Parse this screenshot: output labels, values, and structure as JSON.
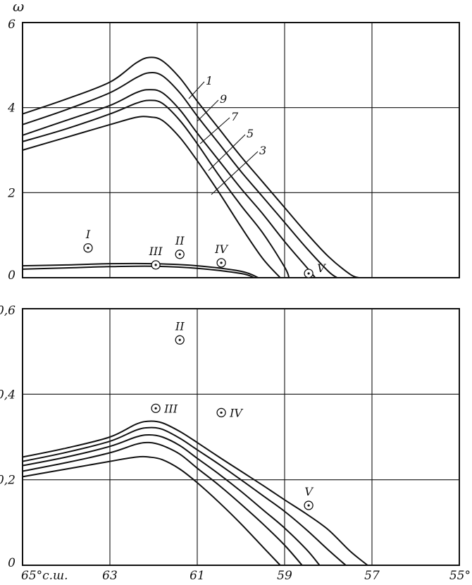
{
  "chart_data": [
    {
      "type": "line",
      "panel": "top",
      "ylabel": "ω",
      "xlim": [
        65,
        55
      ],
      "ylim": [
        0,
        6
      ],
      "grid": true,
      "x_ticks": [
        65,
        63,
        61,
        59,
        57,
        55
      ],
      "y_ticks": [
        0,
        2,
        4,
        6
      ],
      "y_tick_labels": [
        "0",
        "2",
        "4",
        "6"
      ],
      "series": [
        {
          "name": "1",
          "x": [
            65,
            64,
            63,
            62.4,
            62.1,
            61.8,
            61.4,
            61,
            60.5,
            60,
            59.5,
            59,
            58.5,
            58,
            57.5,
            57.3
          ],
          "y": [
            3.85,
            4.2,
            4.6,
            5.05,
            5.18,
            5.1,
            4.7,
            4.15,
            3.5,
            2.85,
            2.25,
            1.65,
            1.05,
            0.5,
            0.08,
            0
          ]
        },
        {
          "name": "9",
          "x": [
            65,
            64,
            63,
            62.4,
            62.1,
            61.8,
            61.4,
            61,
            60.5,
            60,
            59.5,
            59,
            58.5,
            58,
            57.8
          ],
          "y": [
            3.6,
            3.95,
            4.35,
            4.7,
            4.82,
            4.75,
            4.35,
            3.8,
            3.15,
            2.5,
            1.9,
            1.3,
            0.7,
            0.15,
            0
          ]
        },
        {
          "name": "7",
          "x": [
            65,
            64,
            63,
            62.4,
            62.1,
            61.8,
            61.4,
            61,
            60.5,
            60,
            59.5,
            59,
            58.5,
            58.3
          ],
          "y": [
            3.35,
            3.7,
            4.05,
            4.35,
            4.42,
            4.35,
            3.95,
            3.4,
            2.75,
            2.1,
            1.5,
            0.85,
            0.25,
            0
          ]
        },
        {
          "name": "5",
          "x": [
            65,
            64,
            63,
            62.4,
            62.1,
            61.8,
            61.4,
            61,
            60.5,
            60,
            59.5,
            59,
            58.9
          ],
          "y": [
            3.2,
            3.5,
            3.85,
            4.1,
            4.17,
            4.1,
            3.7,
            3.15,
            2.4,
            1.7,
            1.05,
            0.25,
            0
          ]
        },
        {
          "name": "3",
          "x": [
            65,
            64,
            63,
            62.4,
            62.1,
            61.8,
            61.4,
            61,
            60.5,
            60,
            59.5,
            59.1
          ],
          "y": [
            3.0,
            3.3,
            3.6,
            3.77,
            3.78,
            3.7,
            3.3,
            2.75,
            2.0,
            1.2,
            0.45,
            0
          ]
        },
        {
          "name": "",
          "x": [
            65,
            64,
            63,
            62,
            61,
            60,
            59.6
          ],
          "y": [
            0.28,
            0.3,
            0.33,
            0.33,
            0.28,
            0.15,
            0
          ]
        },
        {
          "name": "",
          "x": [
            65,
            64,
            63,
            62,
            61,
            60,
            59.7
          ],
          "y": [
            0.2,
            0.23,
            0.26,
            0.27,
            0.22,
            0.1,
            0
          ]
        }
      ],
      "stations": [
        {
          "label": "I",
          "x": 63.5,
          "y": 0.7
        },
        {
          "label": "III",
          "x": 61.95,
          "y": 0.3
        },
        {
          "label": "II",
          "x": 61.4,
          "y": 0.55
        },
        {
          "label": "IV",
          "x": 60.45,
          "y": 0.35
        },
        {
          "label": "V",
          "x": 58.45,
          "y": 0.1
        }
      ]
    },
    {
      "type": "line",
      "panel": "bottom",
      "xlim": [
        65,
        55
      ],
      "ylim": [
        0,
        0.6
      ],
      "grid": true,
      "x_ticks": [
        65,
        63,
        61,
        59,
        57,
        55
      ],
      "x_tick_labels": [
        "65°с.ш.",
        "63",
        "61",
        "59",
        "57",
        "55°"
      ],
      "y_ticks": [
        0,
        0.2,
        0.4,
        0.6
      ],
      "y_tick_labels": [
        "0",
        "0,2",
        "0,4",
        "0,6"
      ],
      "series": [
        {
          "name": "",
          "x": [
            65,
            64,
            63,
            62.4,
            62.1,
            61.8,
            61.4,
            61,
            60.5,
            60,
            59.5,
            59,
            58.5,
            58,
            57.5,
            57.1
          ],
          "y": [
            0.253,
            0.274,
            0.3,
            0.33,
            0.337,
            0.333,
            0.313,
            0.287,
            0.253,
            0.22,
            0.187,
            0.153,
            0.12,
            0.083,
            0.033,
            0
          ]
        },
        {
          "name": "",
          "x": [
            65,
            64,
            63,
            62.4,
            62.1,
            61.8,
            61.4,
            61,
            60.5,
            60,
            59.5,
            59,
            58.5,
            58,
            57.6
          ],
          "y": [
            0.243,
            0.264,
            0.29,
            0.316,
            0.322,
            0.318,
            0.297,
            0.27,
            0.236,
            0.2,
            0.163,
            0.126,
            0.083,
            0.036,
            0
          ]
        },
        {
          "name": "",
          "x": [
            65,
            64,
            63,
            62.4,
            62.1,
            61.8,
            61.4,
            61,
            60.5,
            60,
            59.5,
            59,
            58.5,
            58.2
          ],
          "y": [
            0.233,
            0.253,
            0.278,
            0.3,
            0.305,
            0.3,
            0.28,
            0.25,
            0.213,
            0.173,
            0.13,
            0.087,
            0.037,
            0
          ]
        },
        {
          "name": "",
          "x": [
            65,
            64,
            63,
            62.4,
            62.1,
            61.8,
            61.4,
            61,
            60.5,
            60,
            59.5,
            59,
            58.6
          ],
          "y": [
            0.22,
            0.24,
            0.263,
            0.283,
            0.287,
            0.28,
            0.26,
            0.227,
            0.187,
            0.143,
            0.097,
            0.047,
            0
          ]
        },
        {
          "name": "",
          "x": [
            65,
            64,
            63,
            62.4,
            62.1,
            61.8,
            61.4,
            61,
            60.5,
            60,
            59.5,
            59.1
          ],
          "y": [
            0.207,
            0.225,
            0.243,
            0.253,
            0.253,
            0.247,
            0.225,
            0.193,
            0.147,
            0.097,
            0.043,
            0
          ]
        }
      ],
      "stations": [
        {
          "label": "II",
          "x": 61.4,
          "y": 0.527
        },
        {
          "label": "III",
          "x": 61.95,
          "y": 0.367
        },
        {
          "label": "IV",
          "x": 60.45,
          "y": 0.357
        },
        {
          "label": "V",
          "x": 58.45,
          "y": 0.14
        }
      ]
    }
  ]
}
